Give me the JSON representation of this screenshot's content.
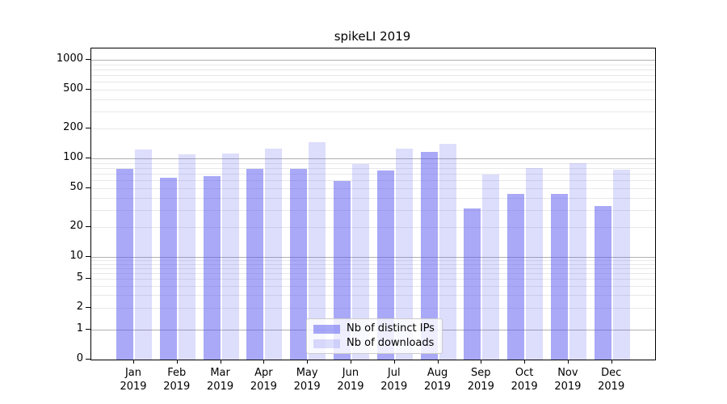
{
  "chart_data": {
    "type": "bar",
    "title": "spikeLI 2019",
    "categories": [
      "Jan",
      "Feb",
      "Mar",
      "Apr",
      "May",
      "Jun",
      "Jul",
      "Aug",
      "Sep",
      "Oct",
      "Nov",
      "Dec"
    ],
    "x_year_suffix": "2019",
    "series": [
      {
        "name": "Nb of distinct IPs",
        "color": "rgba(83,83,240,0.5)",
        "values": [
          78,
          64,
          66,
          79,
          79,
          59,
          75,
          117,
          31,
          44,
          44,
          33
        ]
      },
      {
        "name": "Nb of downloads",
        "color": "rgba(83,83,240,0.2)",
        "values": [
          122,
          110,
          113,
          125,
          147,
          87,
          126,
          141,
          69,
          80,
          90,
          77
        ]
      }
    ],
    "xlabel": "",
    "ylabel": "",
    "y_axis": {
      "scale": "symlog",
      "tick_labels": [
        "1000",
        "500",
        "200",
        "100",
        "50",
        "20",
        "10",
        "5",
        "2",
        "1",
        "0"
      ],
      "tick_values": [
        1000,
        500,
        200,
        100,
        50,
        20,
        10,
        5,
        2,
        1,
        0
      ],
      "ylim": [
        0,
        1300
      ],
      "grid": true
    },
    "legend_position": "lower center",
    "colors": {
      "grid_major": "#b0b0b0",
      "grid_minor": "#e8e8e8",
      "spine": "#000000",
      "background": "#ffffff"
    }
  }
}
